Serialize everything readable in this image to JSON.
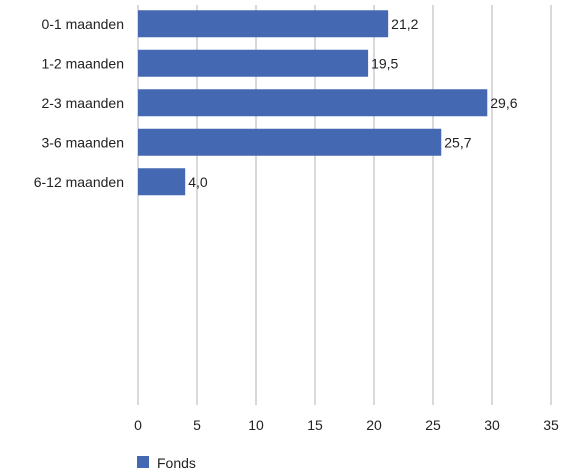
{
  "chart_data": {
    "type": "bar",
    "orientation": "horizontal",
    "categories": [
      "0-1 maanden",
      "1-2 maanden",
      "2-3 maanden",
      "3-6 maanden",
      "6-12 maanden"
    ],
    "series": [
      {
        "name": "Fonds",
        "values": [
          21.2,
          19.5,
          29.6,
          25.7,
          4.0
        ],
        "value_labels": [
          "21,2",
          "19,5",
          "29,6",
          "25,7",
          "4,0"
        ],
        "color": "#4468b1"
      }
    ],
    "xlim": [
      0,
      35
    ],
    "x_ticks": [
      0,
      5,
      10,
      15,
      20,
      25,
      30,
      35
    ],
    "x_tick_labels": [
      "0",
      "5",
      "10",
      "15",
      "20",
      "25",
      "30",
      "35"
    ],
    "grid": "vertical",
    "legend": "bottom-left",
    "title": "",
    "xlabel": "",
    "ylabel": ""
  }
}
